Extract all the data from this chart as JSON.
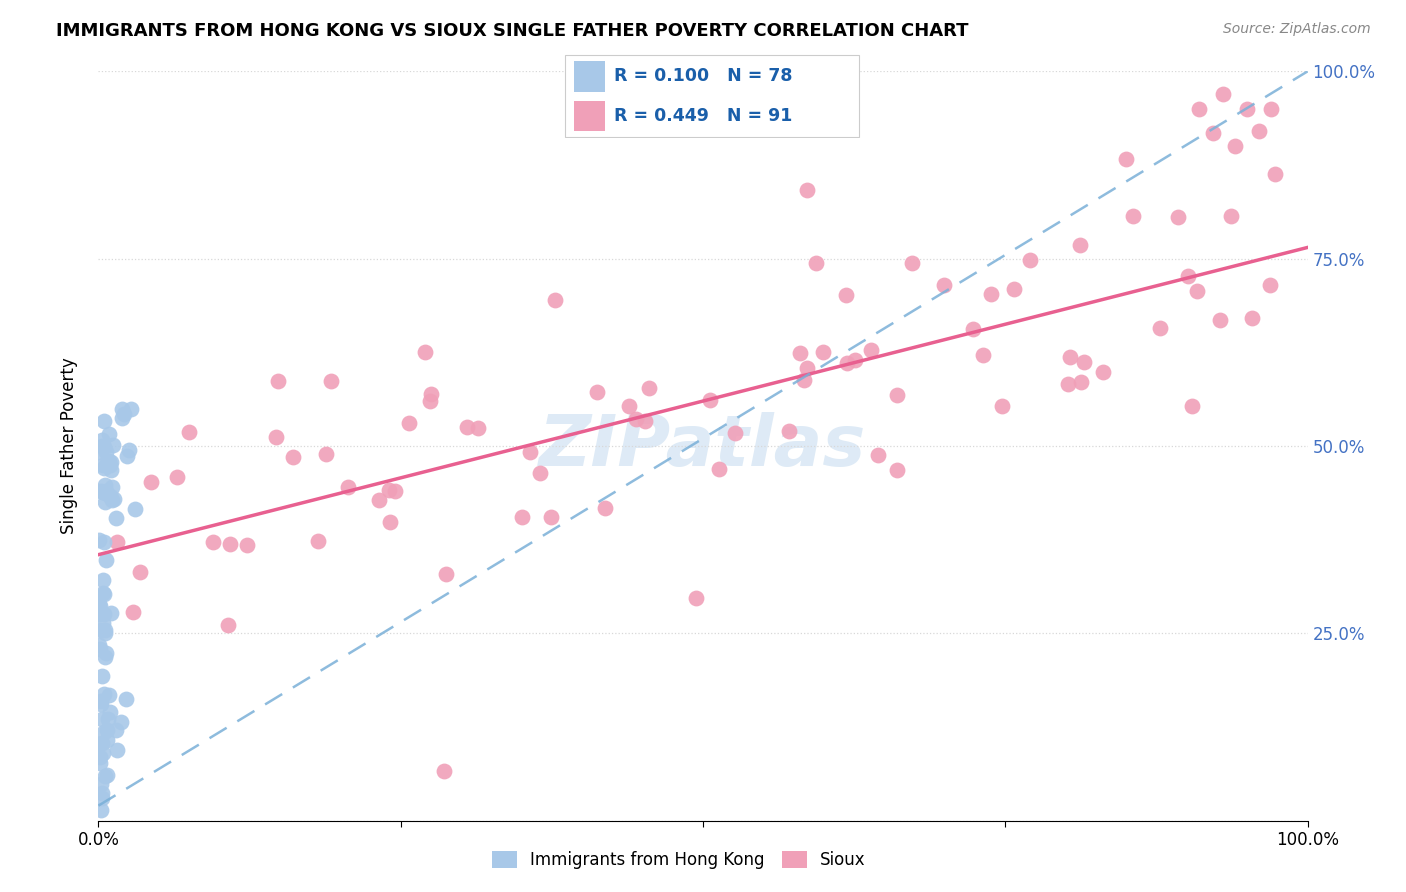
{
  "title": "IMMIGRANTS FROM HONG KONG VS SIOUX SINGLE FATHER POVERTY CORRELATION CHART",
  "source": "Source: ZipAtlas.com",
  "ylabel": "Single Father Poverty",
  "legend_r_blue": "R = 0.100",
  "legend_n_blue": "N = 78",
  "legend_r_pink": "R = 0.449",
  "legend_n_pink": "N = 91",
  "blue_scatter_color": "#a8c8e8",
  "pink_scatter_color": "#f0a0b8",
  "blue_line_color": "#7ab0d8",
  "pink_line_color": "#e86090",
  "right_tick_color": "#4472c4",
  "watermark_color": "#c8ddf0",
  "background_color": "#ffffff",
  "xlim": [
    0.0,
    1.0
  ],
  "ylim": [
    0.0,
    1.0
  ],
  "pink_line_x0": 0.0,
  "pink_line_y0": 0.355,
  "pink_line_x1": 1.0,
  "pink_line_y1": 0.765,
  "blue_line_x0": 0.0,
  "blue_line_y0": 0.02,
  "blue_line_x1": 1.0,
  "blue_line_y1": 1.0
}
